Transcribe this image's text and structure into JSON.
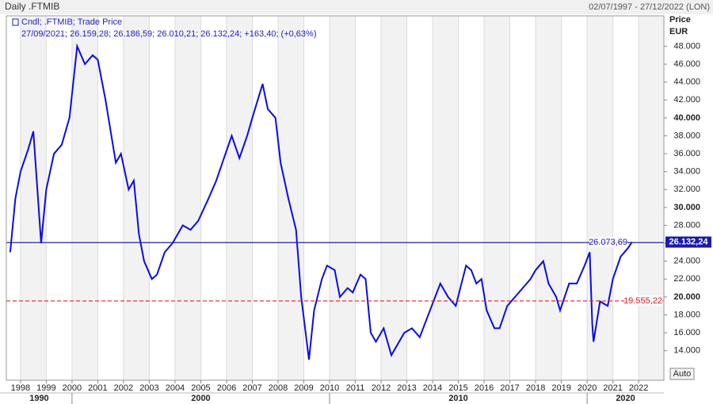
{
  "header": {
    "title": "Daily .FTMIB",
    "range": "02/07/1997 - 27/12/2022 (LON)"
  },
  "chart_data": {
    "type": "line",
    "legend_title": "Cndl; .FTMIB; Trade Price",
    "legend_values": "27/09/2021; 26.159,28; 26.186,59; 26.010,21; 26.132,24; +163,40; (+0,63%)",
    "y_axis_title": "Price",
    "y_axis_unit": "EUR",
    "button": "Auto",
    "color": "#0a0af0",
    "xlim": [
      1997.45,
      2022.98
    ],
    "ylim": [
      10700,
      51400
    ],
    "xticks": [
      1998,
      1999,
      2000,
      2001,
      2002,
      2003,
      2004,
      2005,
      2006,
      2007,
      2008,
      2009,
      2010,
      2011,
      2012,
      2013,
      2014,
      2015,
      2016,
      2017,
      2018,
      2019,
      2020,
      2021,
      2022
    ],
    "decades": [
      1990,
      2000,
      2010,
      2020
    ],
    "yticks": [
      {
        "value": 14000,
        "label": "14.000"
      },
      {
        "value": 16000,
        "label": "16.000"
      },
      {
        "value": 18000,
        "label": "18.000"
      },
      {
        "value": 20000,
        "label": "20.000"
      },
      {
        "value": 22000,
        "label": "22.000"
      },
      {
        "value": 24000,
        "label": "24.000"
      },
      {
        "value": 26000,
        "label": "26.000"
      },
      {
        "value": 28000,
        "label": "28.000"
      },
      {
        "value": 30000,
        "label": "30.000"
      },
      {
        "value": 32000,
        "label": "32.000"
      },
      {
        "value": 34000,
        "label": "34.000"
      },
      {
        "value": 36000,
        "label": "36.000"
      },
      {
        "value": 38000,
        "label": "38.000"
      },
      {
        "value": 40000,
        "label": "40.000"
      },
      {
        "value": 42000,
        "label": "42.000"
      },
      {
        "value": 44000,
        "label": "44.000"
      },
      {
        "value": 46000,
        "label": "46.000"
      },
      {
        "value": 48000,
        "label": "48.000"
      }
    ],
    "reference_lines": [
      {
        "value": 26073.69,
        "label": "26.073,69",
        "color": "#2020b0",
        "style": "solid"
      },
      {
        "value": 19555.22,
        "label": "19.555,22",
        "color": "#e02020",
        "style": "dashed"
      }
    ],
    "last_price": {
      "value": 26132.24,
      "label": "26.132,24"
    },
    "x": [
      1997.6,
      1997.8,
      1998.0,
      1998.3,
      1998.5,
      1998.8,
      1999.0,
      1999.3,
      1999.6,
      1999.9,
      2000.2,
      2000.5,
      2000.8,
      2001.0,
      2001.3,
      2001.7,
      2001.9,
      2002.2,
      2002.4,
      2002.6,
      2002.8,
      2003.1,
      2003.3,
      2003.6,
      2003.9,
      2004.3,
      2004.6,
      2004.9,
      2005.3,
      2005.6,
      2005.9,
      2006.2,
      2006.5,
      2006.8,
      2007.0,
      2007.4,
      2007.6,
      2007.9,
      2008.1,
      2008.4,
      2008.7,
      2008.9,
      2009.2,
      2009.4,
      2009.7,
      2009.9,
      2010.2,
      2010.4,
      2010.7,
      2010.9,
      2011.2,
      2011.4,
      2011.6,
      2011.8,
      2012.1,
      2012.4,
      2012.6,
      2012.9,
      2013.2,
      2013.5,
      2013.9,
      2014.3,
      2014.6,
      2014.9,
      2015.3,
      2015.5,
      2015.7,
      2015.9,
      2016.1,
      2016.4,
      2016.6,
      2016.9,
      2017.2,
      2017.5,
      2017.8,
      2018.0,
      2018.3,
      2018.5,
      2018.8,
      2018.95,
      2019.3,
      2019.6,
      2019.9,
      2020.1,
      2020.2,
      2020.25,
      2020.5,
      2020.8,
      2021.0,
      2021.3,
      2021.6,
      2021.74
    ],
    "values": [
      25000,
      31000,
      34000,
      36500,
      38500,
      26000,
      32000,
      36000,
      37000,
      40000,
      48000,
      46000,
      47000,
      46500,
      42000,
      35000,
      36000,
      32000,
      33000,
      27000,
      24000,
      22000,
      22500,
      25000,
      26000,
      28000,
      27500,
      28500,
      31000,
      33000,
      35500,
      38000,
      35500,
      38000,
      40000,
      43800,
      41000,
      40000,
      35000,
      31000,
      27500,
      20000,
      13000,
      18500,
      22000,
      23500,
      23000,
      20000,
      21000,
      20500,
      22500,
      22000,
      16000,
      15000,
      16500,
      13500,
      14500,
      16000,
      16500,
      15500,
      18500,
      21500,
      20000,
      19000,
      23500,
      23000,
      21500,
      22000,
      18500,
      16500,
      16500,
      19000,
      20000,
      21000,
      22000,
      23000,
      24000,
      21500,
      20000,
      18500,
      21500,
      21500,
      23500,
      25000,
      17000,
      15000,
      19500,
      19000,
      22000,
      24500,
      25500,
      26132.24
    ]
  }
}
